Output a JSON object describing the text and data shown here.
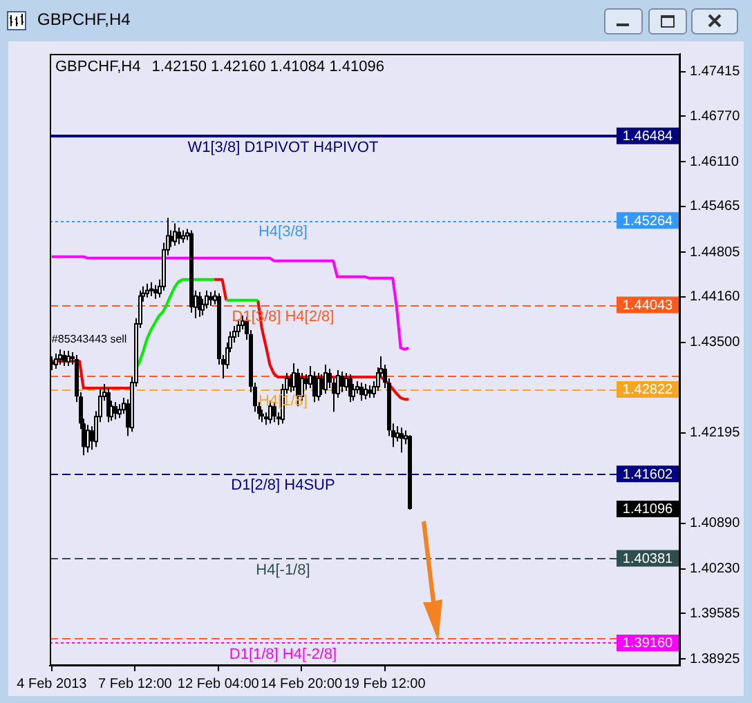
{
  "chart_data": {
    "type": "candlestick",
    "title": "GBPCHF,H4",
    "subtitle": "1.42150 1.42160 1.41084 1.41096",
    "categories": [
      "4 Feb 2013",
      null,
      null,
      null,
      null,
      null,
      null,
      null,
      null,
      null,
      null,
      null,
      null,
      null,
      null,
      null,
      null,
      null,
      null,
      null,
      null,
      "7 Feb 12:00",
      null,
      null,
      null,
      null,
      null,
      null,
      null,
      null,
      null,
      null,
      null,
      null,
      null,
      null,
      null,
      null,
      null,
      null,
      null,
      null,
      "12 Feb 04:00",
      null,
      null,
      null,
      null,
      null,
      null,
      null,
      null,
      null,
      null,
      null,
      null,
      null,
      null,
      null,
      null,
      null,
      null,
      null,
      null,
      "14 Feb 20:00",
      null,
      null,
      null,
      null,
      null,
      null,
      null,
      null,
      null,
      null,
      null,
      null,
      null,
      null,
      null,
      null,
      null,
      null,
      null,
      null,
      "19 Feb 12:00",
      null,
      null,
      null,
      null,
      null,
      null
    ],
    "ohlc": [
      [
        1.4322,
        1.433,
        1.431,
        1.4318
      ],
      [
        1.4318,
        1.4334,
        1.4312,
        1.4326
      ],
      [
        1.4326,
        1.434,
        1.4318,
        1.4332
      ],
      [
        1.4332,
        1.4338,
        1.4316,
        1.4322
      ],
      [
        1.4322,
        1.4338,
        1.4316,
        1.433
      ],
      [
        1.433,
        1.4336,
        1.4318,
        1.4326
      ],
      [
        1.4326,
        1.4332,
        1.4264,
        1.4272
      ],
      [
        1.4272,
        1.4278,
        1.4225,
        1.4233
      ],
      [
        1.4233,
        1.424,
        1.4187,
        1.4199
      ],
      [
        1.4199,
        1.4231,
        1.4191,
        1.4223
      ],
      [
        1.4223,
        1.4229,
        1.4195,
        1.4207
      ],
      [
        1.4207,
        1.4251,
        1.4199,
        1.4243
      ],
      [
        1.4243,
        1.4282,
        1.4235,
        1.4272
      ],
      [
        1.4272,
        1.429,
        1.4266,
        1.4278
      ],
      [
        1.4278,
        1.4284,
        1.4235,
        1.4243
      ],
      [
        1.4243,
        1.4266,
        1.4237,
        1.4258
      ],
      [
        1.4258,
        1.4264,
        1.4239,
        1.4247
      ],
      [
        1.4247,
        1.4261,
        1.4241,
        1.4253
      ],
      [
        1.4253,
        1.427,
        1.4247,
        1.4262
      ],
      [
        1.4262,
        1.4268,
        1.4215,
        1.4227
      ],
      [
        1.4227,
        1.43,
        1.4221,
        1.4292
      ],
      [
        1.4292,
        1.4385,
        1.4286,
        1.4377
      ],
      [
        1.4377,
        1.4425,
        1.4371,
        1.4417
      ],
      [
        1.4417,
        1.4431,
        1.4409,
        1.4421
      ],
      [
        1.4421,
        1.4435,
        1.4415,
        1.4425
      ],
      [
        1.4425,
        1.4437,
        1.4417,
        1.4427
      ],
      [
        1.4427,
        1.4433,
        1.4413,
        1.4421
      ],
      [
        1.4421,
        1.4441,
        1.4415,
        1.4431
      ],
      [
        1.4431,
        1.4494,
        1.4425,
        1.4484
      ],
      [
        1.4484,
        1.453,
        1.4476,
        1.4504
      ],
      [
        1.4504,
        1.4512,
        1.4488,
        1.4496
      ],
      [
        1.4496,
        1.4522,
        1.449,
        1.451
      ],
      [
        1.451,
        1.4516,
        1.4492,
        1.45
      ],
      [
        1.45,
        1.4512,
        1.4494,
        1.4504
      ],
      [
        1.4504,
        1.4514,
        1.4498,
        1.4508
      ],
      [
        1.4508,
        1.4512,
        1.4393,
        1.4401
      ],
      [
        1.4401,
        1.4425,
        1.4385,
        1.4417
      ],
      [
        1.4417,
        1.4423,
        1.4387,
        1.4397
      ],
      [
        1.4397,
        1.4413,
        1.4389,
        1.4405
      ],
      [
        1.4405,
        1.4425,
        1.4399,
        1.4417
      ],
      [
        1.4417,
        1.4423,
        1.4403,
        1.4411
      ],
      [
        1.4411,
        1.4425,
        1.4405,
        1.4417
      ],
      [
        1.4417,
        1.4421,
        1.4318,
        1.4326
      ],
      [
        1.4326,
        1.4332,
        1.4298,
        1.4318
      ],
      [
        1.4318,
        1.435,
        1.4312,
        1.4342
      ],
      [
        1.4342,
        1.4366,
        1.4336,
        1.4358
      ],
      [
        1.4358,
        1.4374,
        1.435,
        1.4366
      ],
      [
        1.4366,
        1.4383,
        1.4358,
        1.4375
      ],
      [
        1.4375,
        1.4389,
        1.4369,
        1.4381
      ],
      [
        1.4381,
        1.4387,
        1.4354,
        1.4362
      ],
      [
        1.4362,
        1.4368,
        1.4278,
        1.4286
      ],
      [
        1.4286,
        1.4292,
        1.425,
        1.4258
      ],
      [
        1.4258,
        1.4264,
        1.4239,
        1.4247
      ],
      [
        1.4247,
        1.4253,
        1.4235,
        1.4243
      ],
      [
        1.4243,
        1.4249,
        1.4231,
        1.4239
      ],
      [
        1.4239,
        1.4266,
        1.4233,
        1.4258
      ],
      [
        1.4258,
        1.4264,
        1.4235,
        1.4243
      ],
      [
        1.4243,
        1.4249,
        1.4231,
        1.4239
      ],
      [
        1.4239,
        1.429,
        1.4233,
        1.4282
      ],
      [
        1.4282,
        1.4306,
        1.4276,
        1.4298
      ],
      [
        1.4298,
        1.4304,
        1.4278,
        1.4286
      ],
      [
        1.4286,
        1.432,
        1.428,
        1.4306
      ],
      [
        1.4306,
        1.4312,
        1.4258,
        1.4272
      ],
      [
        1.4272,
        1.4306,
        1.4266,
        1.4298
      ],
      [
        1.4298,
        1.4304,
        1.4282,
        1.429
      ],
      [
        1.429,
        1.4316,
        1.4284,
        1.4302
      ],
      [
        1.4302,
        1.4308,
        1.4264,
        1.4272
      ],
      [
        1.4272,
        1.4306,
        1.4266,
        1.4298
      ],
      [
        1.4298,
        1.4304,
        1.4274,
        1.4282
      ],
      [
        1.4282,
        1.4318,
        1.4276,
        1.4306
      ],
      [
        1.4306,
        1.4312,
        1.4284,
        1.4292
      ],
      [
        1.4292,
        1.4298,
        1.425,
        1.4276
      ],
      [
        1.4276,
        1.431,
        1.427,
        1.4302
      ],
      [
        1.4302,
        1.4308,
        1.4278,
        1.4286
      ],
      [
        1.4286,
        1.4306,
        1.428,
        1.4298
      ],
      [
        1.4298,
        1.4304,
        1.4264,
        1.4272
      ],
      [
        1.4272,
        1.429,
        1.4266,
        1.4282
      ],
      [
        1.4282,
        1.4294,
        1.4276,
        1.4286
      ],
      [
        1.4286,
        1.4292,
        1.4266,
        1.4274
      ],
      [
        1.4274,
        1.429,
        1.4268,
        1.4282
      ],
      [
        1.4282,
        1.4288,
        1.427,
        1.4276
      ],
      [
        1.4276,
        1.4294,
        1.427,
        1.4286
      ],
      [
        1.4286,
        1.4314,
        1.428,
        1.4306
      ],
      [
        1.4306,
        1.433,
        1.43,
        1.4312
      ],
      [
        1.4312,
        1.4318,
        1.4284,
        1.4292
      ],
      [
        1.4292,
        1.4298,
        1.4215,
        1.4223
      ],
      [
        1.4223,
        1.4233,
        1.4199,
        1.4213
      ],
      [
        1.4213,
        1.4229,
        1.4207,
        1.4219
      ],
      [
        1.4219,
        1.4227,
        1.4191,
        1.4211
      ],
      [
        1.4211,
        1.4223,
        1.4203,
        1.4215
      ],
      [
        1.4215,
        1.4216,
        1.41084,
        1.41096
      ]
    ],
    "series": [
      {
        "type": "line",
        "color": "#ff00ff",
        "values": [
          1.4474,
          1.4474,
          1.4474,
          1.4474,
          1.4474,
          1.4474,
          1.4474,
          1.4474,
          1.4474,
          1.4472,
          1.4472,
          1.4472,
          1.4472,
          1.4472,
          1.4472,
          1.4472,
          1.4472,
          1.4472,
          1.4472,
          1.4472,
          1.4472,
          1.4472,
          1.4472,
          1.4472,
          1.4472,
          1.4472,
          1.4472,
          1.4472,
          1.4472,
          1.4472,
          1.4472,
          1.4472,
          1.4472,
          1.4472,
          1.4472,
          1.4472,
          1.4472,
          1.4472,
          1.4472,
          1.4472,
          1.4472,
          1.4472,
          1.4472,
          1.4472,
          1.4472,
          1.4472,
          1.4472,
          1.4472,
          1.4472,
          1.4472,
          1.4472,
          1.4472,
          1.4472,
          1.4472,
          1.4472,
          1.4472,
          1.4468,
          1.4468,
          1.4468,
          1.4468,
          1.4468,
          1.4468,
          1.4468,
          1.4468,
          1.4468,
          1.4468,
          1.4468,
          1.4468,
          1.4468,
          1.4468,
          1.4468,
          1.4468,
          1.4445,
          1.4445,
          1.4445,
          1.4445,
          1.4445,
          1.4445,
          1.4445,
          1.4445,
          1.4443,
          1.4443,
          1.4443,
          1.4443,
          1.4443,
          1.4443,
          1.4443,
          1.4401,
          1.4342,
          1.434,
          1.4342
        ]
      },
      {
        "type": "line",
        "color": "#00ee00",
        "values": [
          null,
          null,
          null,
          null,
          null,
          null,
          null,
          null,
          null,
          null,
          null,
          null,
          null,
          null,
          null,
          null,
          null,
          null,
          null,
          null,
          null,
          1.431,
          1.432,
          1.4336,
          1.4355,
          1.4368,
          1.4378,
          1.4388,
          1.4394,
          1.4405,
          1.4418,
          1.443,
          1.4438,
          1.4441,
          1.4441,
          1.4441,
          1.4441,
          1.4441,
          1.4441,
          1.4441,
          1.4441,
          1.4441,
          null,
          null,
          1.4411,
          1.4411,
          1.4411,
          1.4411,
          1.4411,
          1.4411,
          1.4411,
          1.4411,
          1.4411,
          null,
          null,
          null,
          null,
          null,
          null,
          null,
          null,
          null,
          null,
          null,
          null,
          null,
          null,
          null,
          null,
          null,
          null,
          null,
          null,
          null,
          null,
          null,
          null,
          null,
          null,
          null,
          null,
          null,
          null,
          null,
          null,
          null,
          null,
          null,
          null,
          null,
          null
        ]
      },
      {
        "type": "line",
        "color": "#ff0000",
        "values": [
          1.4323,
          1.4323,
          1.4323,
          1.4323,
          1.4323,
          1.4323,
          1.4323,
          1.4323,
          1.4284,
          1.4284,
          1.4284,
          1.4284,
          1.4284,
          1.4284,
          1.4284,
          1.4284,
          1.4284,
          1.4284,
          1.4284,
          1.4284,
          1.4284,
          null,
          null,
          null,
          null,
          null,
          null,
          null,
          null,
          null,
          null,
          null,
          null,
          null,
          null,
          null,
          null,
          null,
          null,
          null,
          null,
          1.4441,
          1.4441,
          1.4441,
          1.4411,
          null,
          null,
          null,
          null,
          null,
          null,
          null,
          1.4411,
          1.437,
          1.4345,
          1.4318,
          1.4305,
          1.43,
          1.43,
          1.43,
          1.43,
          1.43,
          1.43,
          1.43,
          1.43,
          1.43,
          1.43,
          1.43,
          1.43,
          1.43,
          1.43,
          1.43,
          1.43,
          1.43,
          1.43,
          1.43,
          1.43,
          1.43,
          1.43,
          1.43,
          1.43,
          1.43,
          1.43,
          1.43,
          1.4296,
          1.429,
          1.4283,
          1.4276,
          1.427,
          1.4268,
          1.4268
        ]
      }
    ],
    "ylim": [
      1.3883,
      1.4767
    ],
    "yticks": [
      1.47415,
      {
        "value": 1.4677,
        "label": "1.46770"
      },
      {
        "value": 1.4611,
        "label": "1.46110"
      },
      1.45465,
      1.44805,
      {
        "value": 1.4416,
        "label": "1.44160"
      },
      {
        "value": 1.435,
        "label": "1.43500"
      },
      1.42195,
      {
        "value": 1.4089,
        "label": "1.40890"
      },
      {
        "value": 1.4023,
        "label": "1.40230"
      },
      1.39585,
      1.38925
    ],
    "ref_lines": [
      {
        "axis": "y",
        "value": 1.46484,
        "label": "W1[3/8] D1PIVOT H4PIVOT",
        "color": "#000080",
        "line_style": "solid"
      },
      {
        "axis": "y",
        "value": 1.45264,
        "label": "H4[3/8]",
        "color": "#3399ff",
        "line_style": "dotted"
      },
      {
        "axis": "y",
        "value": 1.44043,
        "label": "D1[3/8] H4[2/8]",
        "color": "#ff5a1e",
        "line_style": "dashed"
      },
      {
        "axis": "y",
        "value": 1.4302,
        "color": "#ff5a1e",
        "line_style": "dashed"
      },
      {
        "axis": "y",
        "value": 1.42822,
        "label": "H4[1/8]",
        "color": "#f5a623",
        "line_style": "dashed"
      },
      {
        "axis": "y",
        "value": 1.41602,
        "label": "D1[2/8] H4SUP",
        "color": "#000080",
        "line_style": "dashed"
      },
      {
        "axis": "y",
        "value": 1.40381,
        "label": "H4[-1/8]",
        "color": "#2f4f4f",
        "line_style": "dashed"
      },
      {
        "axis": "y",
        "value": 1.3922,
        "color": "#ff5a1e",
        "line_style": "dashed"
      },
      {
        "axis": "y",
        "value": 1.3916,
        "label": "D1[1/8] H4[-2/8]",
        "color": "#ff00ff",
        "line_style": "dotted"
      }
    ],
    "annotations": [
      {
        "text": "#85343443 sell",
        "x": "4 Feb 2013",
        "y": 1.4318
      },
      {
        "text": "1.46484",
        "y": 1.46484
      },
      {
        "text": "1.45264",
        "y": 1.45264
      },
      {
        "text": "1.44043",
        "y": 1.44043
      },
      {
        "text": "1.42822",
        "y": 1.42822
      },
      {
        "text": "1.41602",
        "y": 1.41602
      },
      "1.41096",
      {
        "text": "1.40381",
        "y": 1.40381
      },
      {
        "text": "1.39160",
        "y": 1.3916
      }
    ],
    "grid": false,
    "legend": false
  }
}
